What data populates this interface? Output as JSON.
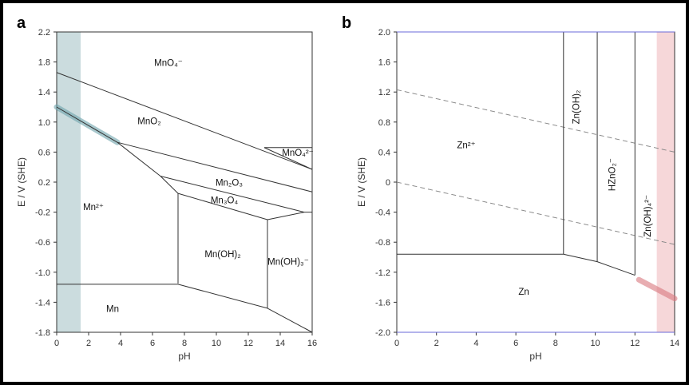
{
  "chart_data": [
    {
      "type": "line",
      "panel": "a",
      "title": "",
      "xlabel": "pH",
      "ylabel": "E / V (SHE)",
      "xlim": [
        0,
        16
      ],
      "ylim": [
        -1.8,
        2.2
      ],
      "xticks": [
        0,
        2,
        4,
        6,
        8,
        10,
        12,
        14,
        16
      ],
      "yticks": [
        -1.8,
        -1.4,
        -1.0,
        -0.6,
        -0.2,
        0.2,
        0.6,
        1.0,
        1.4,
        1.8,
        2.2
      ],
      "ytick_labels": [
        "-1.8",
        "-1.4",
        "-1.0",
        "-0.6",
        "-0.2",
        "0.2",
        "0.6",
        "1.0",
        "1.4",
        "1.8",
        "2.2"
      ],
      "shaded_band": {
        "x": [
          0,
          1.5
        ],
        "color": "#b9d0d3"
      },
      "boundaries": [
        {
          "name": "mno4-mno2",
          "x": [
            0,
            16
          ],
          "y": [
            1.66,
            0.37
          ]
        },
        {
          "name": "mno4-mno4-2-top",
          "x": [
            13,
            16
          ],
          "y": [
            0.66,
            0.66
          ]
        },
        {
          "name": "mno4-2-bottom",
          "x": [
            13,
            16
          ],
          "y": [
            0.66,
            0.37
          ]
        },
        {
          "name": "mno2-mn2",
          "x": [
            0,
            3.8
          ],
          "y": [
            1.2,
            0.73
          ]
        },
        {
          "name": "mno2-mn2o3",
          "x": [
            3.8,
            16
          ],
          "y": [
            0.73,
            0.07
          ]
        },
        {
          "name": "mn2-mn2o3",
          "x": [
            3.8,
            6.5
          ],
          "y": [
            0.73,
            0.28
          ]
        },
        {
          "name": "mn2o3-mn3o4",
          "x": [
            6.5,
            15.5
          ],
          "y": [
            0.28,
            -0.2
          ]
        },
        {
          "name": "mn2-mn3o4",
          "x": [
            6.5,
            7.6
          ],
          "y": [
            0.28,
            0.05
          ]
        },
        {
          "name": "mn3o4-mnoh2",
          "x": [
            7.6,
            13.2
          ],
          "y": [
            0.05,
            -0.3
          ]
        },
        {
          "name": "mn3o4-mnoh3",
          "x": [
            13.2,
            15.5
          ],
          "y": [
            -0.3,
            -0.2
          ]
        },
        {
          "name": "mn3o4-bottom-right",
          "x": [
            15.5,
            16
          ],
          "y": [
            -0.2,
            -0.2
          ]
        },
        {
          "name": "mn2-mnoh2-vertical",
          "x": [
            7.6,
            7.6
          ],
          "y": [
            0.05,
            -1.15
          ]
        },
        {
          "name": "mnoh2-mnoh3-vertical",
          "x": [
            13.2,
            13.2
          ],
          "y": [
            -0.3,
            -1.48
          ]
        },
        {
          "name": "mn2-mn",
          "x": [
            0,
            7.6
          ],
          "y": [
            -1.16,
            -1.16
          ]
        },
        {
          "name": "mnoh2-mn",
          "x": [
            7.6,
            13.2
          ],
          "y": [
            -1.16,
            -1.48
          ]
        },
        {
          "name": "mnoh3-mn",
          "x": [
            13.2,
            16
          ],
          "y": [
            -1.48,
            -1.8
          ]
        }
      ],
      "highlight_line": {
        "x": [
          0,
          3.8
        ],
        "y": [
          1.2,
          0.73
        ],
        "color": "#6fa4ad"
      },
      "region_labels": [
        {
          "text": "MnO₄⁻",
          "x": 7,
          "y": 1.75
        },
        {
          "text": "MnO₂",
          "x": 5.8,
          "y": 0.97
        },
        {
          "text": "MnO₄²⁻",
          "x": 15.1,
          "y": 0.55
        },
        {
          "text": "Mn₂O₃",
          "x": 10.8,
          "y": 0.15
        },
        {
          "text": "Mn₃O₄",
          "x": 10.5,
          "y": -0.08
        },
        {
          "text": "Mn²⁺",
          "x": 2.3,
          "y": -0.17
        },
        {
          "text": "Mn(OH)₂",
          "x": 10.4,
          "y": -0.8
        },
        {
          "text": "Mn(OH)₃⁻",
          "x": 14.5,
          "y": -0.9
        },
        {
          "text": "Mn",
          "x": 3.5,
          "y": -1.53
        }
      ]
    },
    {
      "type": "line",
      "panel": "b",
      "title": "",
      "xlabel": "pH",
      "ylabel": "E / V (SHE)",
      "xlim": [
        0,
        14
      ],
      "ylim": [
        -2.0,
        2.0
      ],
      "xticks": [
        0,
        2,
        4,
        6,
        8,
        10,
        12,
        14
      ],
      "yticks": [
        -2.0,
        -1.6,
        -1.2,
        -0.8,
        -0.4,
        0,
        0.4,
        0.8,
        1.2,
        1.6,
        2.0
      ],
      "ytick_labels": [
        "-2.0",
        "-1.6",
        "-1.2",
        "-0.8",
        "-0.4",
        "0",
        "0.4",
        "0.8",
        "1.2",
        "1.6",
        "2.0"
      ],
      "shaded_band": {
        "x": [
          13.1,
          14
        ],
        "color": "#f3c9cc"
      },
      "boundaries": [
        {
          "name": "zn2-zn",
          "x": [
            0,
            8.4
          ],
          "y": [
            -0.96,
            -0.96
          ]
        },
        {
          "name": "znoh2-zn",
          "x": [
            8.4,
            10.1
          ],
          "y": [
            -0.96,
            -1.06
          ]
        },
        {
          "name": "hzno2-zn",
          "x": [
            10.1,
            12
          ],
          "y": [
            -1.06,
            -1.24
          ]
        },
        {
          "name": "zn2-znoh2-vertical",
          "x": [
            8.4,
            8.4
          ],
          "y": [
            2.0,
            -0.96
          ]
        },
        {
          "name": "znoh2-hzno2-vertical",
          "x": [
            10.1,
            10.1
          ],
          "y": [
            2.0,
            -1.06
          ]
        },
        {
          "name": "hzno2-znoh4-vertical",
          "x": [
            12,
            12
          ],
          "y": [
            2.0,
            -1.24
          ]
        },
        {
          "name": "top-border-line",
          "x": [
            0,
            14
          ],
          "y": [
            2.0,
            2.0
          ]
        },
        {
          "name": "bottom-border-line",
          "x": [
            0,
            14
          ],
          "y": [
            -2.0,
            -2.0
          ]
        }
      ],
      "dashed_lines": [
        {
          "name": "oxygen-evolution",
          "x": [
            0,
            14
          ],
          "y": [
            1.23,
            0.4
          ]
        },
        {
          "name": "hydrogen-evolution",
          "x": [
            0,
            14
          ],
          "y": [
            0,
            -0.83
          ]
        }
      ],
      "highlight_line": {
        "x": [
          12.2,
          14
        ],
        "y": [
          -1.3,
          -1.55
        ],
        "color": "#d9777e"
      },
      "region_labels": [
        {
          "text": "Zn²⁺",
          "x": 3.5,
          "y": 0.45
        },
        {
          "text": "Zn(OH)₂",
          "x": 9.2,
          "y": 1.0,
          "rotate": -90
        },
        {
          "text": "HZnO₂⁻",
          "x": 11.0,
          "y": 0.1,
          "rotate": -90
        },
        {
          "text": "Zn(OH)₄²⁻",
          "x": 12.8,
          "y": -0.45,
          "rotate": -90
        },
        {
          "text": "Zn",
          "x": 6.4,
          "y": -1.5
        }
      ]
    }
  ],
  "panel_labels": {
    "a": "a",
    "b": "b"
  },
  "colors": {
    "axis": "#333333",
    "line": "#333333",
    "dashed": "#888888",
    "blue_edge": "#6a6ad8"
  }
}
